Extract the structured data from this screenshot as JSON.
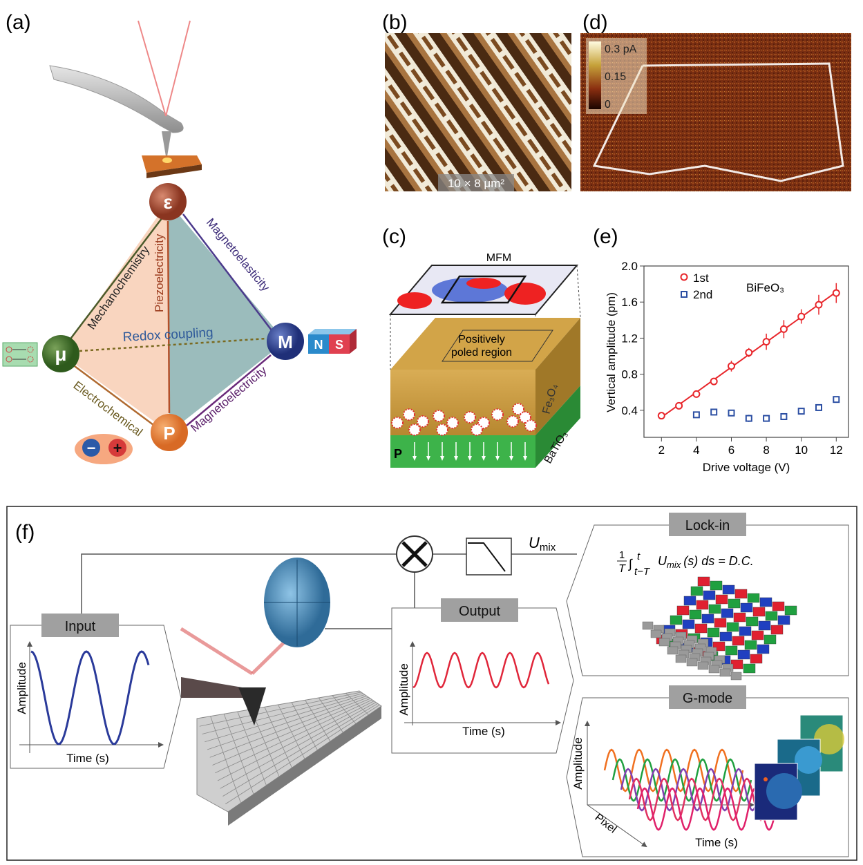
{
  "panels": {
    "a": {
      "label": "(a)",
      "nodes": {
        "strain": "ε",
        "chemical": "μ",
        "magnetic": "M",
        "polarization": "P"
      },
      "couplings": {
        "mechanochemistry": "Mechanochemistry",
        "piezoelectricity": "Piezoelectricity",
        "magnetoelasticity": "Magnetoelasticity",
        "redox": "Redox coupling",
        "electrochemical": "Electrochemical",
        "magnetoelectricity": "Magnetoelectricity"
      },
      "magnet": {
        "north": "N",
        "south": "S"
      },
      "charges": {
        "negative": "−",
        "positive": "+"
      },
      "colors": {
        "strain": "#a0452f",
        "chemical": "#3d6b2a",
        "magnetic": "#2c3f8c",
        "polarization": "#e07b39",
        "left_region": "#f9d5bf",
        "right_region": "#9bbcbc"
      }
    },
    "b": {
      "label": "(b)",
      "scale": "10 × 8 μm²"
    },
    "d": {
      "label": "(d)",
      "colorbar": {
        "max": "0.3 pA",
        "mid": "0.15",
        "min": "0"
      }
    },
    "c": {
      "label": "(c)",
      "mfm": "MFM",
      "region_line1": "Positively",
      "region_line2": "poled region",
      "top_layer": "Fe₃O₄",
      "bottom_layer": "BaTiO₃",
      "polarization": "P"
    },
    "e": {
      "label": "(e)"
    },
    "f": {
      "label": "(f)",
      "input": {
        "title": "Input",
        "ylabel": "Amplitude",
        "xlabel": "Time (s)"
      },
      "output": {
        "title": "Output",
        "ylabel": "Amplitude",
        "xlabel": "Time (s)"
      },
      "umix": "U",
      "umix_sub": "mix",
      "lockin": {
        "title": "Lock-in",
        "formula": "1/T ∫ₜ₋ₜᵗ U_mix (s) ds = D.C.",
        "formula_frac_num": "1",
        "formula_frac_den": "T",
        "formula_body": "∫",
        "formula_upper": "t",
        "formula_lower": "t−T",
        "formula_u": "U",
        "formula_u_sub": "mix",
        "formula_rest": "(s) ds = D.C."
      },
      "gmode": {
        "title": "G-mode",
        "ylabel": "Amplitude",
        "xlabel": "Time (s)",
        "zlabel": "Pixel"
      }
    }
  },
  "chart_data": {
    "type": "scatter",
    "title": "",
    "annotation": "BiFeO₃",
    "xlabel": "Drive voltage (V)",
    "ylabel": "Vertical amplitude (pm)",
    "xlim": [
      1,
      12.7
    ],
    "ylim": [
      0.1,
      2.0
    ],
    "xticks": [
      2,
      4,
      6,
      8,
      10,
      12
    ],
    "yticks": [
      0.4,
      0.8,
      1.2,
      1.6,
      2.0
    ],
    "ytick_labels": [
      "0.4",
      "0.8",
      "1.2",
      "1.6",
      "2.0"
    ],
    "grid": false,
    "legend": "top-left",
    "series": [
      {
        "name": "1st",
        "marker": "circle",
        "color": "#e8262b",
        "fit_line": true,
        "x": [
          2,
          3,
          4,
          5,
          6,
          7,
          8,
          9,
          10,
          11,
          12
        ],
        "y": [
          0.34,
          0.45,
          0.58,
          0.72,
          0.89,
          1.04,
          1.16,
          1.3,
          1.44,
          1.57,
          1.7
        ],
        "err": [
          0.03,
          0.02,
          0.03,
          0.02,
          0.06,
          0.05,
          0.09,
          0.1,
          0.08,
          0.11,
          0.11
        ]
      },
      {
        "name": "2nd",
        "marker": "square",
        "color": "#2c4fa3",
        "fit_line": false,
        "x": [
          4,
          5,
          6,
          7,
          8,
          9,
          10,
          11,
          12
        ],
        "y": [
          0.35,
          0.38,
          0.37,
          0.31,
          0.31,
          0.33,
          0.39,
          0.43,
          0.52
        ],
        "err": [
          0.01,
          0.01,
          0.03,
          0.04,
          0.01,
          0.01,
          0.01,
          0.01,
          0.01
        ]
      }
    ]
  }
}
